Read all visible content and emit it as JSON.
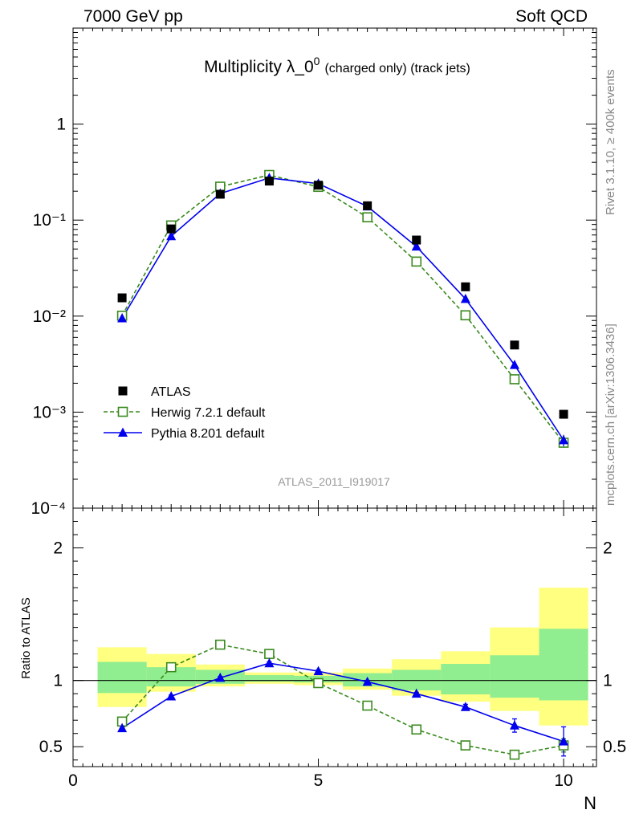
{
  "header": {
    "energy_label": "7000 GeV pp",
    "process_label": "Soft QCD"
  },
  "side_labels": {
    "rivet": "Rivet 3.1.10, ≥ 400k events",
    "mcplots": "mcplots.cern.ch [arXiv:1306.3436]"
  },
  "chart_data": {
    "type": "scatter",
    "title": "Multiplicity λ_0⁰ (charged only) (track jets)",
    "title_main": "Multiplicity λ_0",
    "title_sup": "0",
    "title_small": "(charged only) (track jets)",
    "analysis_label": "ATLAS_2011_I919017",
    "xlabel": "N",
    "xlim": [
      0,
      10.67
    ],
    "x_ticks": [
      0,
      5,
      10
    ],
    "main_panel": {
      "yscale": "log",
      "ylim": [
        0.0001,
        10
      ],
      "y_ticks": [
        "10⁻⁴",
        "10⁻³",
        "10⁻²",
        "10⁻¹",
        "1"
      ],
      "legend_position": "bottom-left",
      "series": [
        {
          "name": "ATLAS",
          "marker": "filled-square",
          "color": "#000000",
          "x": [
            1,
            2,
            3,
            4,
            5,
            6,
            7,
            8,
            9,
            10
          ],
          "y": [
            0.0155,
            0.081,
            0.186,
            0.255,
            0.231,
            0.141,
            0.062,
            0.0202,
            0.005,
            0.00095
          ]
        },
        {
          "name": "Herwig 7.2.1 default",
          "marker": "open-square",
          "line": "dashed",
          "color": "#3a8a1e",
          "x": [
            1,
            2,
            3,
            4,
            5,
            6,
            7,
            8,
            9,
            10
          ],
          "y": [
            0.0101,
            0.088,
            0.223,
            0.295,
            0.222,
            0.107,
            0.037,
            0.0102,
            0.0022,
            0.00048
          ]
        },
        {
          "name": "Pythia 8.201 default",
          "marker": "filled-triangle",
          "line": "solid",
          "color": "#0000ee",
          "x": [
            1,
            2,
            3,
            4,
            5,
            6,
            7,
            8,
            9,
            10
          ],
          "y": [
            0.0095,
            0.068,
            0.189,
            0.275,
            0.24,
            0.139,
            0.053,
            0.0151,
            0.0031,
            0.00051
          ]
        }
      ]
    },
    "ratio_panel": {
      "ylabel": "Ratio to ATLAS",
      "ylim": [
        0.35,
        2.3
      ],
      "y_ticks": [
        0.5,
        1,
        2
      ],
      "bands": {
        "x_low": [
          0.5,
          1.5,
          2.5,
          3.5,
          4.5,
          5.5,
          6.5,
          7.5,
          8.5,
          9.5
        ],
        "x_high": [
          1.5,
          2.5,
          3.5,
          4.5,
          5.5,
          6.5,
          7.5,
          8.5,
          9.5,
          10.5
        ],
        "outer_low": [
          0.8,
          0.915,
          0.955,
          0.975,
          0.965,
          0.93,
          0.885,
          0.84,
          0.77,
          0.66
        ],
        "outer_high": [
          1.25,
          1.2,
          1.12,
          1.06,
          1.06,
          1.09,
          1.16,
          1.22,
          1.4,
          1.7
        ],
        "inner_low": [
          0.905,
          0.955,
          0.975,
          0.99,
          0.985,
          0.955,
          0.925,
          0.895,
          0.87,
          0.85
        ],
        "inner_high": [
          1.14,
          1.1,
          1.08,
          1.04,
          1.035,
          1.055,
          1.08,
          1.125,
          1.19,
          1.39
        ],
        "outer_color": "#ffff80",
        "inner_color": "#90ee90"
      },
      "series": [
        {
          "name": "Herwig 7.2.1 default",
          "color": "#3a8a1e",
          "x": [
            1,
            2,
            3,
            4,
            5,
            6,
            7,
            8,
            9,
            10
          ],
          "y": [
            0.69,
            1.1,
            1.27,
            1.2,
            0.98,
            0.81,
            0.63,
            0.51,
            0.44,
            0.51
          ],
          "err": [
            0,
            0,
            0,
            0,
            0,
            0,
            0,
            0,
            0,
            0.05
          ]
        },
        {
          "name": "Pythia 8.201 default",
          "color": "#0000ee",
          "x": [
            1,
            2,
            3,
            4,
            5,
            6,
            7,
            8,
            9,
            10
          ],
          "y": [
            0.64,
            0.88,
            1.02,
            1.13,
            1.07,
            0.99,
            0.9,
            0.8,
            0.66,
            0.54
          ],
          "err": [
            0.02,
            0.01,
            0.01,
            0.01,
            0.01,
            0.01,
            0.01,
            0.02,
            0.05,
            0.11
          ]
        }
      ]
    }
  }
}
